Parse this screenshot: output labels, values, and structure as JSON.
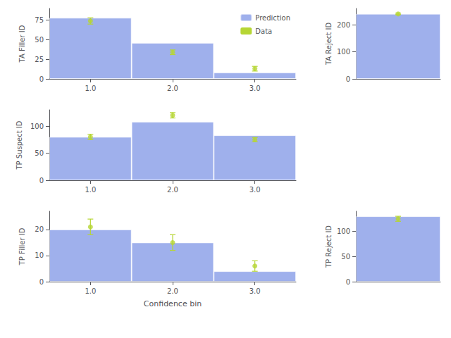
{
  "chart_data": [
    {
      "type": "bar",
      "ylabel": "TA Filler ID",
      "categories": [
        "1.0",
        "2.0",
        "3.0"
      ],
      "series": [
        {
          "name": "Prediction",
          "type": "bar",
          "values": [
            78,
            46,
            8
          ]
        },
        {
          "name": "Data",
          "type": "scatter",
          "marker": "circle",
          "values": [
            74,
            34,
            13
          ],
          "errors": [
            4,
            3,
            3
          ]
        }
      ],
      "ylim": [
        0,
        90
      ],
      "yticks": [
        0,
        25,
        50,
        75
      ],
      "grid": false,
      "legend": "upper right"
    },
    {
      "type": "bar",
      "ylabel": "TA Reject ID",
      "categories": [
        null
      ],
      "series": [
        {
          "name": "Prediction",
          "type": "bar",
          "values": [
            240
          ]
        },
        {
          "name": "Data",
          "type": "scatter",
          "marker": "circle",
          "values": [
            240
          ],
          "errors": [
            3
          ]
        }
      ],
      "ylim": [
        0,
        260
      ],
      "yticks": [
        0,
        100,
        200
      ],
      "grid": false,
      "tick_labels": "y"
    },
    {
      "type": "bar",
      "ylabel": "TP Suspect ID",
      "categories": [
        "1.0",
        "2.0",
        "3.0"
      ],
      "series": [
        {
          "name": "Prediction",
          "type": "bar",
          "values": [
            80,
            108,
            83
          ]
        },
        {
          "name": "Data",
          "type": "scatter",
          "marker": "circle",
          "values": [
            80,
            120,
            75
          ],
          "errors": [
            5,
            5,
            4
          ]
        }
      ],
      "ylim": [
        0,
        130
      ],
      "yticks": [
        0,
        50,
        100
      ],
      "grid": false
    },
    {
      "type": "bar",
      "ylabel": "TP Filler ID",
      "xlabel": "Confidence bin",
      "categories": [
        "1.0",
        "2.0",
        "3.0"
      ],
      "series": [
        {
          "name": "Prediction",
          "type": "bar",
          "values": [
            20,
            15,
            4
          ]
        },
        {
          "name": "Data",
          "type": "scatter",
          "marker": "circle",
          "values": [
            21,
            15,
            6
          ],
          "errors": [
            3,
            3,
            2
          ]
        }
      ],
      "ylim": [
        0,
        27
      ],
      "yticks": [
        0,
        10,
        20
      ],
      "grid": false
    },
    {
      "type": "bar",
      "ylabel": "TP Reject ID",
      "categories": [
        null
      ],
      "series": [
        {
          "name": "Prediction",
          "type": "bar",
          "values": [
            130
          ]
        },
        {
          "name": "Data",
          "type": "scatter",
          "marker": "circle",
          "values": [
            125
          ],
          "errors": [
            5
          ]
        }
      ],
      "ylim": [
        0,
        140
      ],
      "yticks": [
        0,
        50,
        100
      ],
      "grid": false,
      "tick_labels": "y"
    }
  ]
}
